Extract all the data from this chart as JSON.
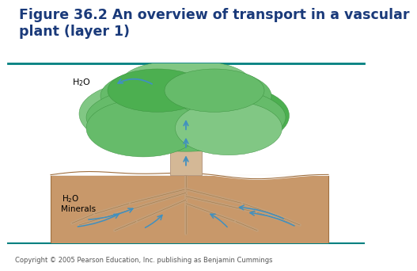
{
  "title": "Figure 36.2 An overview of transport in a vascular\nplant (layer 1)",
  "title_color": "#1a3a7a",
  "title_fontsize": 12.5,
  "copyright": "Copyright © 2005 Pearson Education, Inc. publishing as Benjamin Cummings",
  "copyright_fontsize": 6.0,
  "background_color": "#ffffff",
  "header_line_color": "#008080",
  "footer_line_color": "#008080",
  "label_color": "#000000",
  "arrow_color": "#4090c0",
  "soil_color": "#c8986a",
  "trunk_color": "#d4b896",
  "trunk_edge": "#b0927a",
  "root_color": "#c4a07a",
  "canopy_color": "#66bb6a",
  "canopy_color2": "#81c784",
  "canopy_color3": "#4caf50"
}
